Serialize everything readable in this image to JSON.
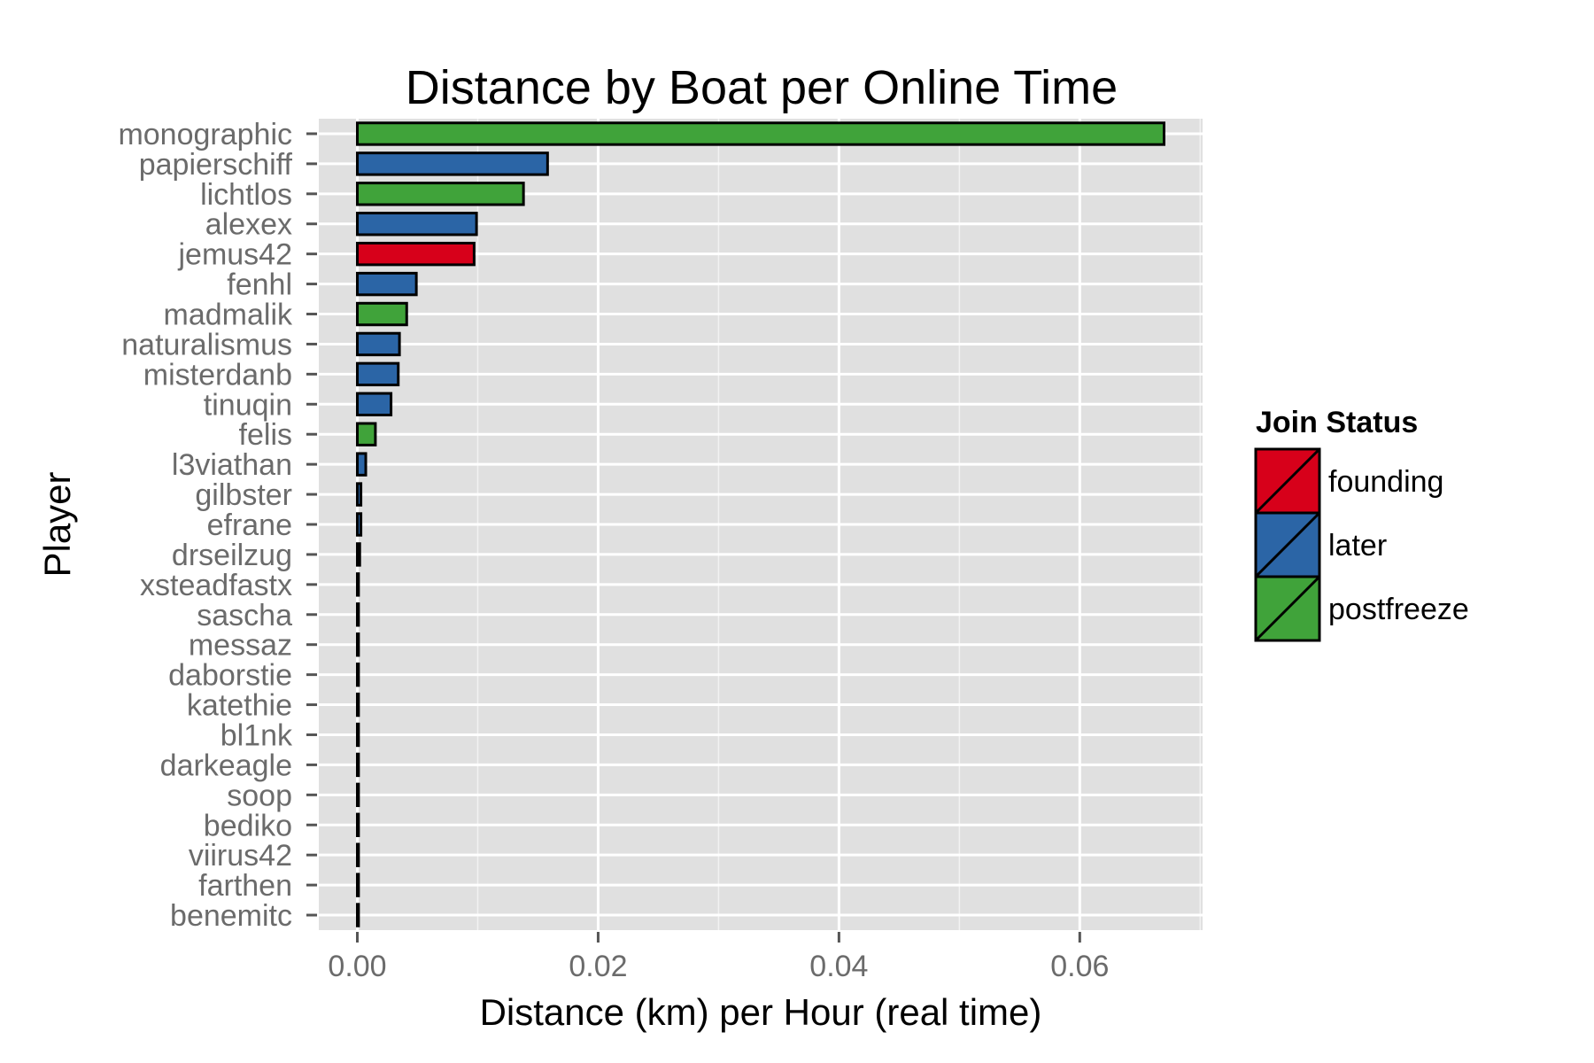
{
  "chart_data": {
    "type": "bar",
    "orientation": "horizontal",
    "title": "Distance by Boat per Online Time",
    "xlabel": "Distance (km) per Hour (real time)",
    "ylabel": "Player",
    "xlim": [
      -0.0032,
      0.0702
    ],
    "xticks": [
      0.0,
      0.02,
      0.04,
      0.06
    ],
    "xtick_labels": [
      "0.00",
      "0.02",
      "0.04",
      "0.06"
    ],
    "grid": true,
    "legend": {
      "title": "Join Status",
      "placement": "right",
      "entries": [
        {
          "label": "founding",
          "color": "#d7001a"
        },
        {
          "label": "later",
          "color": "#2b65a6"
        },
        {
          "label": "postfreeze",
          "color": "#40a33a"
        }
      ]
    },
    "categories": [
      "monographic",
      "papierschiff",
      "lichtlos",
      "alexex",
      "jemus42",
      "fenhl",
      "madmalik",
      "naturalismus",
      "misterdanb",
      "tinuqin",
      "felis",
      "l3viathan",
      "gilbster",
      "efrane",
      "drseilzug",
      "xsteadfastx",
      "sascha",
      "messaz",
      "daborstie",
      "katethie",
      "bl1nk",
      "darkeagle",
      "soop",
      "bediko",
      "viirus42",
      "farthen",
      "benemitc"
    ],
    "values": [
      0.067,
      0.0158,
      0.0138,
      0.0099,
      0.0097,
      0.0049,
      0.0041,
      0.0035,
      0.0034,
      0.0028,
      0.0015,
      0.0007,
      0.0003,
      0.0003,
      0.0002,
      0.0001,
      0.0001,
      0.0001,
      0.0001,
      0.0001,
      0.0001,
      0.0001,
      0.0001,
      0.0001,
      0.0001,
      0.0001,
      0.0001
    ],
    "groups": [
      "postfreeze",
      "later",
      "postfreeze",
      "later",
      "founding",
      "later",
      "postfreeze",
      "later",
      "later",
      "later",
      "postfreeze",
      "later",
      "later",
      "later",
      "later",
      "later",
      "later",
      "later",
      "later",
      "later",
      "later",
      "later",
      "later",
      "later",
      "later",
      "later",
      "later"
    ]
  }
}
